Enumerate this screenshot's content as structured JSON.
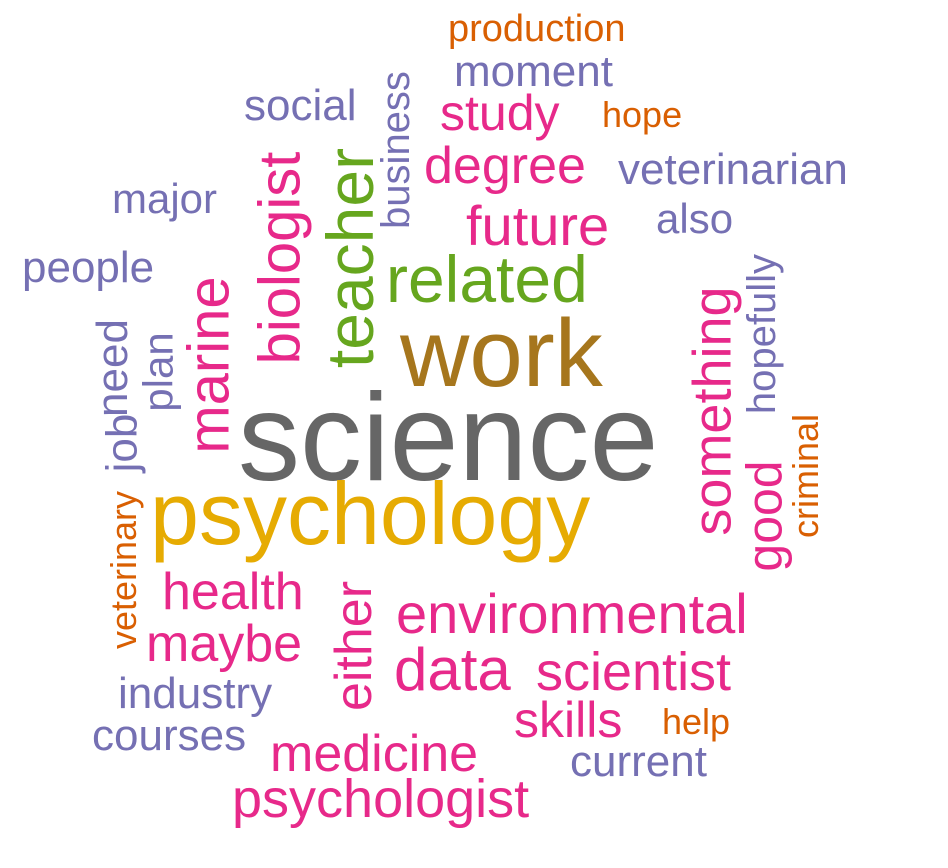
{
  "palette": {
    "gray": "#666666",
    "gold": "#e6ab02",
    "brown": "#a6761d",
    "green": "#66a61e",
    "magenta": "#e7298a",
    "purple": "#7570b3",
    "orange": "#d95f02"
  },
  "words": [
    {
      "id": "science",
      "text": "science",
      "color": "gray"
    },
    {
      "id": "psychology",
      "text": "psychology",
      "color": "gold"
    },
    {
      "id": "work",
      "text": "work",
      "color": "brown"
    },
    {
      "id": "related",
      "text": "related",
      "color": "green"
    },
    {
      "id": "teacher",
      "text": "teacher",
      "color": "green"
    },
    {
      "id": "biologist",
      "text": "biologist",
      "color": "magenta"
    },
    {
      "id": "marine",
      "text": "marine",
      "color": "magenta"
    },
    {
      "id": "environmental",
      "text": "environmental",
      "color": "magenta"
    },
    {
      "id": "data",
      "text": "data",
      "color": "magenta"
    },
    {
      "id": "scientist",
      "text": "scientist",
      "color": "magenta"
    },
    {
      "id": "something",
      "text": "something",
      "color": "magenta"
    },
    {
      "id": "future",
      "text": "future",
      "color": "magenta"
    },
    {
      "id": "degree",
      "text": "degree",
      "color": "magenta"
    },
    {
      "id": "study",
      "text": "study",
      "color": "magenta"
    },
    {
      "id": "health",
      "text": "health",
      "color": "magenta"
    },
    {
      "id": "maybe",
      "text": "maybe",
      "color": "magenta"
    },
    {
      "id": "either",
      "text": "either",
      "color": "magenta"
    },
    {
      "id": "skills",
      "text": "skills",
      "color": "magenta"
    },
    {
      "id": "medicine",
      "text": "medicine",
      "color": "magenta"
    },
    {
      "id": "psychologist",
      "text": "psychologist",
      "color": "magenta"
    },
    {
      "id": "good",
      "text": "good",
      "color": "magenta"
    },
    {
      "id": "veterinarian",
      "text": "veterinarian",
      "color": "purple"
    },
    {
      "id": "moment",
      "text": "moment",
      "color": "purple"
    },
    {
      "id": "social",
      "text": "social",
      "color": "purple"
    },
    {
      "id": "business",
      "text": "business",
      "color": "purple"
    },
    {
      "id": "major",
      "text": "major",
      "color": "purple"
    },
    {
      "id": "people",
      "text": "people",
      "color": "purple"
    },
    {
      "id": "also",
      "text": "also",
      "color": "purple"
    },
    {
      "id": "hopefully",
      "text": "hopefully",
      "color": "purple"
    },
    {
      "id": "need",
      "text": "need",
      "color": "purple"
    },
    {
      "id": "plan",
      "text": "plan",
      "color": "purple"
    },
    {
      "id": "job",
      "text": "job",
      "color": "purple"
    },
    {
      "id": "industry",
      "text": "industry",
      "color": "purple"
    },
    {
      "id": "courses",
      "text": "courses",
      "color": "purple"
    },
    {
      "id": "current",
      "text": "current",
      "color": "purple"
    },
    {
      "id": "production",
      "text": "production",
      "color": "orange"
    },
    {
      "id": "hope",
      "text": "hope",
      "color": "orange"
    },
    {
      "id": "criminal",
      "text": "criminal",
      "color": "orange"
    },
    {
      "id": "veterinary",
      "text": "veterinary",
      "color": "orange"
    },
    {
      "id": "help",
      "text": "help",
      "color": "orange"
    }
  ]
}
